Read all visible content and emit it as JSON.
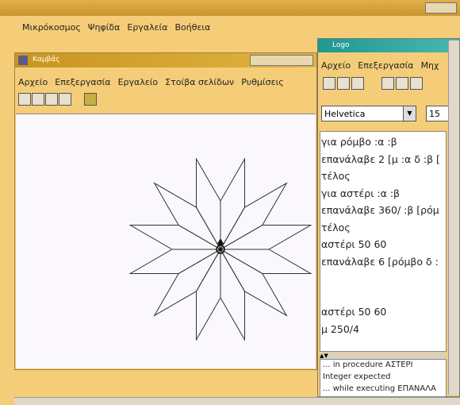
{
  "main_window": {
    "menu": [
      "Μικρόκοσμος",
      "Ψηφίδα",
      "Εργαλεία",
      "Βοήθεια"
    ]
  },
  "canvas_window": {
    "title": "Καμβάς",
    "menu": [
      "Αρχείο",
      "Επεξεργασία",
      "Εργαλείο",
      "Στοίβα σελίδων",
      "Ρυθμίσεις"
    ]
  },
  "logo_window": {
    "title": "Logo",
    "menu": [
      "Αρχείο",
      "Επεξεργασία",
      "Μηχ"
    ],
    "font": "Helvetica",
    "font_size": "15",
    "procedures": [
      "για ρόμβο :α :β",
      "επανάλαβε 2 [μ :α δ :β [",
      "τέλος",
      "για αστέρι :α :β",
      "επανάλαβε 360/ :β [ρόμ",
      "τέλος",
      "αστέρι 50 60",
      "επανάλαβε 6 [ρόμβο δ :"
    ],
    "commands": [
      "αστέρι 50 60",
      "μ 250/4"
    ],
    "output": [
      "... in procedure ΑΣΤΕΡΙ",
      "Integer expected",
      "... while executing ΕΠΑΝΑΛΑ"
    ]
  }
}
